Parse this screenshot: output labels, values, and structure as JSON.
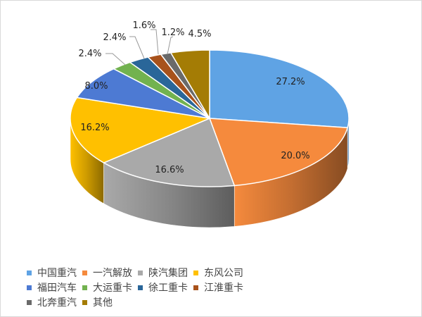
{
  "chart_data": {
    "type": "pie",
    "style": "3d",
    "categories": [
      "中国重汽",
      "一汽解放",
      "陕汽集团",
      "东风公司",
      "福田汽车",
      "大运重卡",
      "徐工重卡",
      "江淮重卡",
      "北奔重汽",
      "其他"
    ],
    "values": [
      27.2,
      20.0,
      16.6,
      16.2,
      8.0,
      2.4,
      2.4,
      1.6,
      1.2,
      4.5
    ],
    "data_labels": [
      "27.2%",
      "20.0%",
      "16.6%",
      "16.2%",
      "8.0%",
      "2.4%",
      "2.4%",
      "1.6%",
      "1.2%",
      "4.5%"
    ],
    "colors": [
      "#5fa3e4",
      "#f58a3d",
      "#a9a9a9",
      "#ffc000",
      "#4d7ad3",
      "#72b24f",
      "#2a6699",
      "#a8521b",
      "#6a6a6a",
      "#a47c05"
    ],
    "legend_position": "bottom"
  }
}
